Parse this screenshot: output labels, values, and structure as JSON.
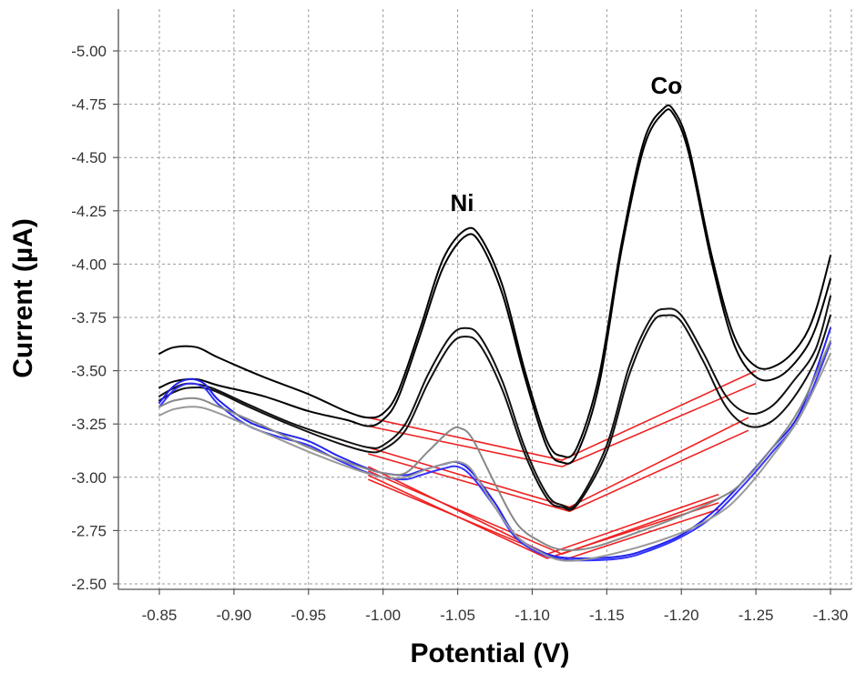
{
  "chart_data": {
    "type": "line",
    "xlabel": "Potential (V)",
    "ylabel": "Current (µA)",
    "xlim": [
      -0.85,
      -1.3
    ],
    "ylim": [
      -2.5,
      -5.0
    ],
    "x_ticks": [
      "-0.85",
      "-0.90",
      "-0.95",
      "-1.00",
      "-1.05",
      "-1.10",
      "-1.15",
      "-1.20",
      "-1.25",
      "-1.30"
    ],
    "y_ticks": [
      "-5.00",
      "-4.75",
      "-4.50",
      "-4.25",
      "-4.00",
      "-3.75",
      "-3.50",
      "-3.25",
      "-3.00",
      "-2.75",
      "-2.50"
    ],
    "grid": true,
    "annotations": [
      {
        "text": "Ni",
        "x": -1.053,
        "y": -4.25
      },
      {
        "text": "Co",
        "x": -1.19,
        "y": -4.8
      }
    ],
    "series": [
      {
        "color": "#000000",
        "points": [
          [
            -0.85,
            -3.58
          ],
          [
            -0.86,
            -3.61
          ],
          [
            -0.875,
            -3.61
          ],
          [
            -0.89,
            -3.56
          ],
          [
            -0.92,
            -3.47
          ],
          [
            -0.95,
            -3.39
          ],
          [
            -0.975,
            -3.31
          ],
          [
            -0.99,
            -3.28
          ],
          [
            -1.0,
            -3.3
          ],
          [
            -1.01,
            -3.4
          ],
          [
            -1.025,
            -3.7
          ],
          [
            -1.04,
            -4.02
          ],
          [
            -1.055,
            -4.16
          ],
          [
            -1.065,
            -4.13
          ],
          [
            -1.08,
            -3.9
          ],
          [
            -1.095,
            -3.5
          ],
          [
            -1.11,
            -3.17
          ],
          [
            -1.12,
            -3.1
          ],
          [
            -1.13,
            -3.14
          ],
          [
            -1.145,
            -3.48
          ],
          [
            -1.16,
            -4.1
          ],
          [
            -1.175,
            -4.58
          ],
          [
            -1.188,
            -4.73
          ],
          [
            -1.195,
            -4.72
          ],
          [
            -1.205,
            -4.55
          ],
          [
            -1.22,
            -4.05
          ],
          [
            -1.235,
            -3.67
          ],
          [
            -1.25,
            -3.52
          ],
          [
            -1.265,
            -3.53
          ],
          [
            -1.28,
            -3.63
          ],
          [
            -1.29,
            -3.78
          ],
          [
            -1.3,
            -4.04
          ]
        ]
      },
      {
        "color": "#000000",
        "points": [
          [
            -0.85,
            -3.42
          ],
          [
            -0.86,
            -3.45
          ],
          [
            -0.875,
            -3.46
          ],
          [
            -0.89,
            -3.43
          ],
          [
            -0.92,
            -3.38
          ],
          [
            -0.95,
            -3.31
          ],
          [
            -0.975,
            -3.27
          ],
          [
            -0.99,
            -3.24
          ],
          [
            -1.0,
            -3.27
          ],
          [
            -1.01,
            -3.37
          ],
          [
            -1.025,
            -3.67
          ],
          [
            -1.04,
            -3.98
          ],
          [
            -1.055,
            -4.13
          ],
          [
            -1.065,
            -4.1
          ],
          [
            -1.08,
            -3.86
          ],
          [
            -1.095,
            -3.47
          ],
          [
            -1.11,
            -3.14
          ],
          [
            -1.12,
            -3.07
          ],
          [
            -1.13,
            -3.11
          ],
          [
            -1.145,
            -3.44
          ],
          [
            -1.16,
            -4.07
          ],
          [
            -1.175,
            -4.55
          ],
          [
            -1.188,
            -4.71
          ],
          [
            -1.195,
            -4.7
          ],
          [
            -1.205,
            -4.52
          ],
          [
            -1.22,
            -4.02
          ],
          [
            -1.235,
            -3.63
          ],
          [
            -1.25,
            -3.47
          ],
          [
            -1.265,
            -3.47
          ],
          [
            -1.28,
            -3.57
          ],
          [
            -1.29,
            -3.7
          ],
          [
            -1.3,
            -3.93
          ]
        ]
      },
      {
        "color": "#111111",
        "points": [
          [
            -0.85,
            -3.38
          ],
          [
            -0.86,
            -3.42
          ],
          [
            -0.87,
            -3.44
          ],
          [
            -0.885,
            -3.42
          ],
          [
            -0.91,
            -3.34
          ],
          [
            -0.94,
            -3.25
          ],
          [
            -0.97,
            -3.18
          ],
          [
            -0.99,
            -3.14
          ],
          [
            -1.0,
            -3.15
          ],
          [
            -1.015,
            -3.25
          ],
          [
            -1.03,
            -3.48
          ],
          [
            -1.045,
            -3.66
          ],
          [
            -1.055,
            -3.7
          ],
          [
            -1.065,
            -3.66
          ],
          [
            -1.08,
            -3.45
          ],
          [
            -1.095,
            -3.14
          ],
          [
            -1.11,
            -2.92
          ],
          [
            -1.12,
            -2.87
          ],
          [
            -1.13,
            -2.88
          ],
          [
            -1.15,
            -3.15
          ],
          [
            -1.165,
            -3.52
          ],
          [
            -1.18,
            -3.75
          ],
          [
            -1.19,
            -3.79
          ],
          [
            -1.2,
            -3.76
          ],
          [
            -1.215,
            -3.58
          ],
          [
            -1.23,
            -3.38
          ],
          [
            -1.245,
            -3.3
          ],
          [
            -1.26,
            -3.33
          ],
          [
            -1.275,
            -3.45
          ],
          [
            -1.29,
            -3.6
          ],
          [
            -1.3,
            -3.85
          ]
        ]
      },
      {
        "color": "#111111",
        "points": [
          [
            -0.85,
            -3.36
          ],
          [
            -0.86,
            -3.4
          ],
          [
            -0.87,
            -3.42
          ],
          [
            -0.885,
            -3.41
          ],
          [
            -0.91,
            -3.33
          ],
          [
            -0.94,
            -3.24
          ],
          [
            -0.97,
            -3.16
          ],
          [
            -0.99,
            -3.12
          ],
          [
            -1.0,
            -3.13
          ],
          [
            -1.015,
            -3.22
          ],
          [
            -1.03,
            -3.44
          ],
          [
            -1.045,
            -3.62
          ],
          [
            -1.055,
            -3.66
          ],
          [
            -1.065,
            -3.62
          ],
          [
            -1.08,
            -3.41
          ],
          [
            -1.095,
            -3.11
          ],
          [
            -1.11,
            -2.9
          ],
          [
            -1.12,
            -2.86
          ],
          [
            -1.13,
            -2.87
          ],
          [
            -1.15,
            -3.12
          ],
          [
            -1.165,
            -3.48
          ],
          [
            -1.18,
            -3.72
          ],
          [
            -1.19,
            -3.76
          ],
          [
            -1.2,
            -3.73
          ],
          [
            -1.215,
            -3.54
          ],
          [
            -1.23,
            -3.33
          ],
          [
            -1.245,
            -3.24
          ],
          [
            -1.26,
            -3.26
          ],
          [
            -1.275,
            -3.37
          ],
          [
            -1.29,
            -3.55
          ],
          [
            -1.3,
            -3.76
          ]
        ]
      },
      {
        "color": "#2222ee",
        "points": [
          [
            -0.85,
            -3.35
          ],
          [
            -0.86,
            -3.43
          ],
          [
            -0.87,
            -3.46
          ],
          [
            -0.88,
            -3.44
          ],
          [
            -0.89,
            -3.36
          ],
          [
            -0.91,
            -3.26
          ],
          [
            -0.93,
            -3.21
          ],
          [
            -0.95,
            -3.17
          ],
          [
            -0.97,
            -3.1
          ],
          [
            -0.99,
            -3.04
          ],
          [
            -1.0,
            -3.02
          ],
          [
            -1.015,
            -3.01
          ],
          [
            -1.025,
            -3.03
          ],
          [
            -1.04,
            -3.06
          ],
          [
            -1.05,
            -3.07
          ],
          [
            -1.06,
            -3.02
          ],
          [
            -1.075,
            -2.88
          ],
          [
            -1.09,
            -2.72
          ],
          [
            -1.11,
            -2.64
          ],
          [
            -1.13,
            -2.62
          ],
          [
            -1.16,
            -2.63
          ],
          [
            -1.18,
            -2.67
          ],
          [
            -1.2,
            -2.73
          ],
          [
            -1.22,
            -2.83
          ],
          [
            -1.24,
            -2.97
          ],
          [
            -1.26,
            -3.13
          ],
          [
            -1.28,
            -3.31
          ],
          [
            -1.3,
            -3.7
          ]
        ]
      },
      {
        "color": "#3333ff",
        "points": [
          [
            -0.85,
            -3.33
          ],
          [
            -0.86,
            -3.41
          ],
          [
            -0.87,
            -3.44
          ],
          [
            -0.88,
            -3.42
          ],
          [
            -0.89,
            -3.34
          ],
          [
            -0.91,
            -3.24
          ],
          [
            -0.93,
            -3.19
          ],
          [
            -0.95,
            -3.15
          ],
          [
            -0.97,
            -3.08
          ],
          [
            -0.99,
            -3.02
          ],
          [
            -1.0,
            -3.0
          ],
          [
            -1.015,
            -2.99
          ],
          [
            -1.025,
            -3.01
          ],
          [
            -1.04,
            -3.04
          ],
          [
            -1.05,
            -3.05
          ],
          [
            -1.06,
            -3.0
          ],
          [
            -1.075,
            -2.86
          ],
          [
            -1.09,
            -2.71
          ],
          [
            -1.11,
            -2.63
          ],
          [
            -1.13,
            -2.61
          ],
          [
            -1.16,
            -2.62
          ],
          [
            -1.18,
            -2.66
          ],
          [
            -1.2,
            -2.72
          ],
          [
            -1.22,
            -2.81
          ],
          [
            -1.24,
            -2.95
          ],
          [
            -1.26,
            -3.11
          ],
          [
            -1.28,
            -3.29
          ],
          [
            -1.3,
            -3.63
          ]
        ]
      },
      {
        "color": "#888888",
        "points": [
          [
            -0.85,
            -3.33
          ],
          [
            -0.86,
            -3.36
          ],
          [
            -0.875,
            -3.37
          ],
          [
            -0.89,
            -3.33
          ],
          [
            -0.92,
            -3.24
          ],
          [
            -0.95,
            -3.14
          ],
          [
            -0.98,
            -3.06
          ],
          [
            -1.0,
            -3.02
          ],
          [
            -1.015,
            -3.02
          ],
          [
            -1.03,
            -3.12
          ],
          [
            -1.045,
            -3.22
          ],
          [
            -1.052,
            -3.23
          ],
          [
            -1.06,
            -3.18
          ],
          [
            -1.075,
            -2.97
          ],
          [
            -1.09,
            -2.78
          ],
          [
            -1.105,
            -2.7
          ],
          [
            -1.12,
            -2.66
          ],
          [
            -1.14,
            -2.67
          ],
          [
            -1.17,
            -2.74
          ],
          [
            -1.2,
            -2.82
          ],
          [
            -1.225,
            -2.9
          ],
          [
            -1.24,
            -2.97
          ],
          [
            -1.26,
            -3.13
          ],
          [
            -1.28,
            -3.33
          ],
          [
            -1.3,
            -3.64
          ]
        ]
      },
      {
        "color": "#999999",
        "points": [
          [
            -0.85,
            -3.29
          ],
          [
            -0.86,
            -3.32
          ],
          [
            -0.875,
            -3.33
          ],
          [
            -0.89,
            -3.3
          ],
          [
            -0.92,
            -3.21
          ],
          [
            -0.95,
            -3.12
          ],
          [
            -0.98,
            -3.04
          ],
          [
            -1.0,
            -3.0
          ],
          [
            -1.015,
            -3.0
          ],
          [
            -1.03,
            -3.04
          ],
          [
            -1.045,
            -3.07
          ],
          [
            -1.052,
            -3.07
          ],
          [
            -1.06,
            -3.03
          ],
          [
            -1.075,
            -2.86
          ],
          [
            -1.09,
            -2.72
          ],
          [
            -1.105,
            -2.65
          ],
          [
            -1.12,
            -2.61
          ],
          [
            -1.14,
            -2.62
          ],
          [
            -1.17,
            -2.67
          ],
          [
            -1.2,
            -2.74
          ],
          [
            -1.225,
            -2.83
          ],
          [
            -1.24,
            -2.92
          ],
          [
            -1.26,
            -3.09
          ],
          [
            -1.28,
            -3.29
          ],
          [
            -1.3,
            -3.58
          ]
        ]
      }
    ],
    "baselines": [
      {
        "color": "#ee2222",
        "points": [
          [
            -0.99,
            -3.28
          ],
          [
            -1.12,
            -3.08
          ],
          [
            -1.25,
            -3.5
          ]
        ]
      },
      {
        "color": "#ee2222",
        "points": [
          [
            -0.99,
            -3.24
          ],
          [
            -1.12,
            -3.05
          ],
          [
            -1.25,
            -3.44
          ]
        ]
      },
      {
        "color": "#ee2222",
        "points": [
          [
            -0.99,
            -3.14
          ],
          [
            -1.125,
            -2.86
          ],
          [
            -1.245,
            -3.28
          ]
        ]
      },
      {
        "color": "#ee2222",
        "points": [
          [
            -0.99,
            -3.11
          ],
          [
            -1.125,
            -2.84
          ],
          [
            -1.245,
            -3.22
          ]
        ]
      },
      {
        "color": "#ee2222",
        "points": [
          [
            -0.99,
            -3.05
          ],
          [
            -1.11,
            -2.64
          ],
          [
            -1.225,
            -2.92
          ]
        ]
      },
      {
        "color": "#ee2222",
        "points": [
          [
            -0.99,
            -3.01
          ],
          [
            -1.11,
            -2.62
          ],
          [
            -1.225,
            -2.88
          ]
        ]
      },
      {
        "color": "#ee2222",
        "points": [
          [
            -0.99,
            -3.03
          ],
          [
            -1.12,
            -2.64
          ],
          [
            -1.225,
            -2.9
          ]
        ]
      },
      {
        "color": "#ee2222",
        "points": [
          [
            -0.99,
            -2.99
          ],
          [
            -1.12,
            -2.61
          ],
          [
            -1.225,
            -2.85
          ]
        ]
      }
    ]
  }
}
